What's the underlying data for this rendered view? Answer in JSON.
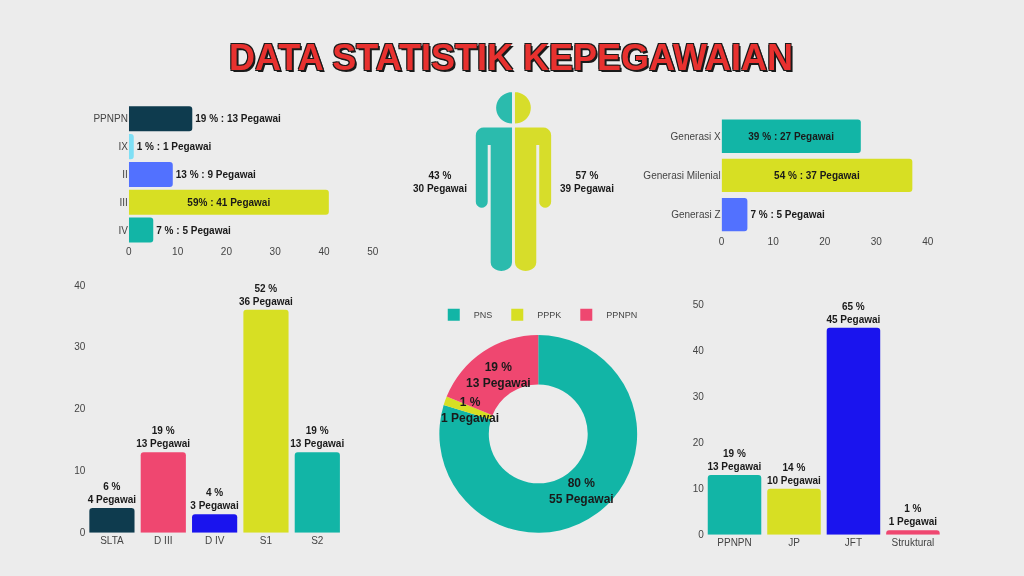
{
  "chart_data": [
    {
      "type": "other",
      "title": "DATA STATISTIK KEPEGAWAIAN"
    },
    {
      "type": "bar",
      "orientation": "horizontal",
      "categories": [
        "PPNPN",
        "IX",
        "II",
        "III",
        "IV"
      ],
      "values": [
        13,
        1,
        9,
        41,
        5
      ],
      "colors": [
        "#0e3b4e",
        "#7fdff5",
        "#5271ff",
        "#d7df23",
        "#12b5a6"
      ],
      "xlim": [
        0,
        50
      ],
      "xticks": [
        0,
        10,
        20,
        30,
        40,
        50
      ],
      "value_labels": [
        "19 % : 13 Pegawai",
        "1 % : 1 Pegawai",
        "13 % : 9 Pegawai",
        "59% : 41 Pegawai",
        "7 % : 5 Pegawai"
      ]
    },
    {
      "type": "other",
      "categories": [
        null,
        null
      ],
      "values": [
        30,
        39
      ],
      "colors": [
        "#2bbbad",
        "#d7dd2a"
      ],
      "value_labels": [
        "43 %\n30 Pegawai",
        "57 %\n39 Pegawai"
      ]
    },
    {
      "type": "bar",
      "orientation": "horizontal",
      "categories": [
        "Generasi X",
        "Generasi Milenial",
        "Generasi Z"
      ],
      "values": [
        27,
        37,
        5
      ],
      "colors": [
        "#12b5a6",
        "#d7df23",
        "#5271ff"
      ],
      "xlim": [
        0,
        40
      ],
      "xticks": [
        0,
        10,
        20,
        30,
        40
      ],
      "value_labels": [
        "39 % : 27 Pegawai",
        "54 % : 37 Pegawai",
        "7 % : 5 Pegawai"
      ]
    },
    {
      "type": "bar",
      "categories": [
        "SLTA",
        "D III",
        "D IV",
        "S1",
        "S2"
      ],
      "values": [
        4,
        13,
        3,
        36,
        13
      ],
      "colors": [
        "#0e3b4e",
        "#ef4770",
        "#1a14ee",
        "#d7df23",
        "#12b5a6"
      ],
      "ylim": [
        0,
        40
      ],
      "yticks": [
        0,
        10,
        20,
        30,
        40
      ],
      "value_labels": [
        "6 %\n4 Pegawai",
        "19 %\n13 Pegawai",
        "4 %\n3 Pegawai",
        "52 %\n36 Pegawai",
        "19 %\n13 Pegawai"
      ]
    },
    {
      "type": "donut",
      "categories": [
        "PNS",
        "PPPK",
        "PPNPN"
      ],
      "values": [
        55,
        1,
        13
      ],
      "colors": [
        "#12b5a6",
        "#d7df23",
        "#ef4770"
      ],
      "value_labels": [
        "80 %\n55 Pegawai",
        "1 %\n1 Pegawai",
        "19 %\n13 Pegawai"
      ],
      "legend": "top"
    },
    {
      "type": "bar",
      "categories": [
        "PPNPN",
        "JP",
        "JFT",
        "Struktural"
      ],
      "values": [
        13,
        10,
        45,
        1
      ],
      "colors": [
        "#12b5a6",
        "#d7df23",
        "#1a14ee",
        "#ef4770"
      ],
      "ylim": [
        0,
        50
      ],
      "yticks": [
        0,
        10,
        20,
        30,
        40,
        50
      ],
      "value_labels": [
        "19 %\n13 Pegawai",
        "14 %\n10 Pegawai",
        "65 %\n45 Pegawai",
        "1 %\n1 Pegawai"
      ]
    }
  ]
}
